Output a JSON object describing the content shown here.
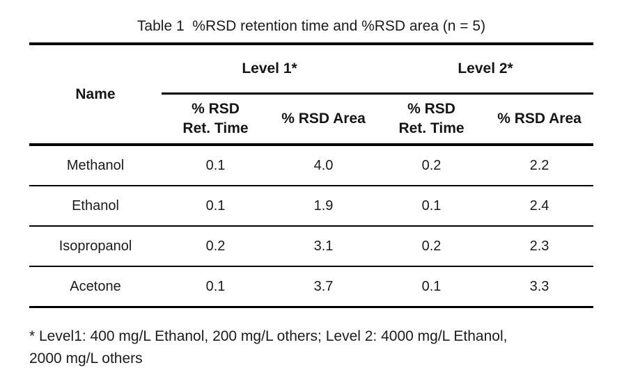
{
  "title": "Table 1  %RSD retention time and %RSD area (n = 5)",
  "table": {
    "name_header": "Name",
    "level_headers": [
      "Level 1*",
      "Level 2*"
    ],
    "sub_headers": [
      {
        "line1": "% RSD",
        "line2": "Ret. Time"
      },
      {
        "line1": "% RSD Area",
        "line2": ""
      },
      {
        "line1": "% RSD",
        "line2": "Ret. Time"
      },
      {
        "line1": "% RSD Area",
        "line2": ""
      }
    ],
    "rows": [
      {
        "name": "Methanol",
        "values": [
          "0.1",
          "4.0",
          "0.2",
          "2.2"
        ]
      },
      {
        "name": "Ethanol",
        "values": [
          "0.1",
          "1.9",
          "0.1",
          "2.4"
        ]
      },
      {
        "name": "Isopropanol",
        "values": [
          "0.2",
          "3.1",
          "0.2",
          "2.3"
        ]
      },
      {
        "name": "Acetone",
        "values": [
          "0.1",
          "3.7",
          "0.1",
          "3.3"
        ]
      }
    ]
  },
  "footnote": {
    "line1": "* Level1: 400 mg/L Ethanol, 200 mg/L others; Level 2: 4000 mg/L Ethanol,",
    "line2": "2000 mg/L others"
  }
}
